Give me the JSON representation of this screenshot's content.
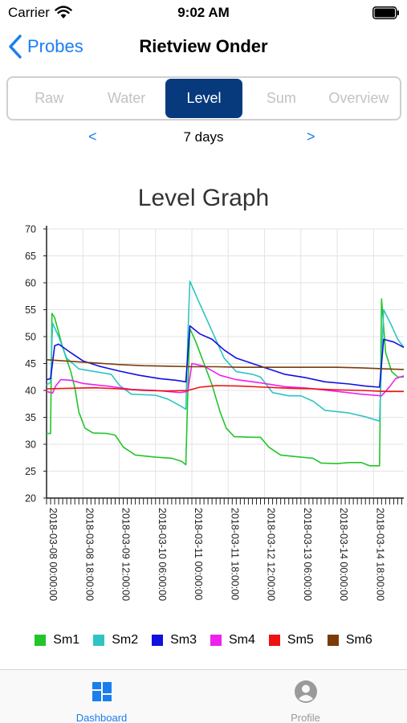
{
  "status": {
    "carrier": "Carrier",
    "time": "9:02 AM"
  },
  "nav": {
    "back_label": "Probes",
    "title": "Rietview Onder"
  },
  "tabs": [
    {
      "label": "Raw",
      "active": false
    },
    {
      "label": "Water",
      "active": false
    },
    {
      "label": "Level",
      "active": true
    },
    {
      "label": "Sum",
      "active": false
    },
    {
      "label": "Overview",
      "active": false
    }
  ],
  "period": {
    "prev": "<",
    "label": "7 days",
    "next": ">"
  },
  "chart_title": "Level Graph",
  "chart_data": {
    "type": "line",
    "title": "Level Graph",
    "xlabel": "",
    "ylabel": "",
    "xlim": [
      "2018-03-08 00:00:00",
      "2018-03-15 09:00:00"
    ],
    "ylim": [
      20,
      70
    ],
    "yticks": [
      "20",
      "25",
      "30",
      "35",
      "40",
      "45",
      "50",
      "55",
      "60",
      "65",
      "70"
    ],
    "xticks": [
      {
        "t": "2018-03-08 00:00:00",
        "label": "2018-03-08 00:00:00"
      },
      {
        "t": "2018-03-08 18:00:00",
        "label": "2018-03-08 18:00:00"
      },
      {
        "t": "2018-03-09 12:00:00",
        "label": "2018-03-09 12:00:00"
      },
      {
        "t": "2018-03-10 06:00:00",
        "label": "2018-03-10 06:00:00"
      },
      {
        "t": "2018-03-11 00:00:00",
        "label": "2018-03-11 00:00:00"
      },
      {
        "t": "2018-03-11 18:00:00",
        "label": "2018-03-11 18:00:00"
      },
      {
        "t": "2018-03-12 12:00:00",
        "label": "2018-03-12 12:00:00"
      },
      {
        "t": "2018-03-13 06:00:00",
        "label": "2018-03-13 06:00:00"
      },
      {
        "t": "2018-03-14 00:00:00",
        "label": "2018-03-14 00:00:00"
      },
      {
        "t": "2018-03-14 18:00:00",
        "label": "2018-03-14 18:00:00"
      }
    ],
    "grid": true,
    "legend": "bottom",
    "series": [
      {
        "name": "Sm1",
        "color": "#22c52a",
        "points": [
          [
            "2018-03-08 00:00:00",
            32
          ],
          [
            "2018-03-08 02:00:00",
            32
          ],
          [
            "2018-03-08 02:40:00",
            54.3
          ],
          [
            "2018-03-08 04:00:00",
            53.5
          ],
          [
            "2018-03-08 08:00:00",
            48
          ],
          [
            "2018-03-08 12:00:00",
            43.5
          ],
          [
            "2018-03-08 14:00:00",
            40.5
          ],
          [
            "2018-03-08 16:00:00",
            36
          ],
          [
            "2018-03-08 19:00:00",
            33
          ],
          [
            "2018-03-08 23:00:00",
            32.1
          ],
          [
            "2018-03-09 06:00:00",
            32
          ],
          [
            "2018-03-09 10:00:00",
            31.7
          ],
          [
            "2018-03-09 14:00:00",
            29.5
          ],
          [
            "2018-03-09 20:00:00",
            28
          ],
          [
            "2018-03-10 06:00:00",
            27.6
          ],
          [
            "2018-03-10 14:00:00",
            27.4
          ],
          [
            "2018-03-10 19:00:00",
            26.8
          ],
          [
            "2018-03-10 21:00:00",
            26.2
          ],
          [
            "2018-03-10 22:00:00",
            40
          ],
          [
            "2018-03-10 23:00:00",
            51.5
          ],
          [
            "2018-03-11 02:00:00",
            49
          ],
          [
            "2018-03-11 06:00:00",
            45
          ],
          [
            "2018-03-11 10:00:00",
            41
          ],
          [
            "2018-03-11 14:00:00",
            36
          ],
          [
            "2018-03-11 17:00:00",
            33
          ],
          [
            "2018-03-11 21:00:00",
            31.4
          ],
          [
            "2018-03-12 06:00:00",
            31.3
          ],
          [
            "2018-03-12 10:00:00",
            31.3
          ],
          [
            "2018-03-12 14:00:00",
            29.5
          ],
          [
            "2018-03-12 20:00:00",
            28
          ],
          [
            "2018-03-13 06:00:00",
            27.6
          ],
          [
            "2018-03-13 12:00:00",
            27.4
          ],
          [
            "2018-03-13 16:00:00",
            26.5
          ],
          [
            "2018-03-14 00:00:00",
            26.4
          ],
          [
            "2018-03-14 06:00:00",
            26.6
          ],
          [
            "2018-03-14 12:00:00",
            26.6
          ],
          [
            "2018-03-14 16:00:00",
            26
          ],
          [
            "2018-03-14 21:00:00",
            26
          ],
          [
            "2018-03-14 22:00:00",
            57
          ],
          [
            "2018-03-15 00:00:00",
            47
          ],
          [
            "2018-03-15 03:00:00",
            43.5
          ],
          [
            "2018-03-15 06:00:00",
            42.5
          ],
          [
            "2018-03-15 09:00:00",
            42.5
          ]
        ]
      },
      {
        "name": "Sm2",
        "color": "#2ec4c4",
        "points": [
          [
            "2018-03-08 00:00:00",
            41
          ],
          [
            "2018-03-08 02:00:00",
            41.5
          ],
          [
            "2018-03-08 03:00:00",
            52.5
          ],
          [
            "2018-03-08 06:00:00",
            50
          ],
          [
            "2018-03-08 10:00:00",
            46
          ],
          [
            "2018-03-08 16:00:00",
            44
          ],
          [
            "2018-03-09 00:00:00",
            43.5
          ],
          [
            "2018-03-09 08:00:00",
            43
          ],
          [
            "2018-03-09 12:00:00",
            41
          ],
          [
            "2018-03-09 18:00:00",
            39.3
          ],
          [
            "2018-03-10 06:00:00",
            39.1
          ],
          [
            "2018-03-10 12:00:00",
            38.4
          ],
          [
            "2018-03-10 18:00:00",
            37.2
          ],
          [
            "2018-03-10 21:00:00",
            36.5
          ],
          [
            "2018-03-10 22:00:00",
            50
          ],
          [
            "2018-03-10 23:00:00",
            60.3
          ],
          [
            "2018-03-11 04:00:00",
            56
          ],
          [
            "2018-03-11 10:00:00",
            51
          ],
          [
            "2018-03-11 16:00:00",
            46
          ],
          [
            "2018-03-11 22:00:00",
            43.5
          ],
          [
            "2018-03-12 06:00:00",
            43
          ],
          [
            "2018-03-12 10:00:00",
            42.5
          ],
          [
            "2018-03-12 16:00:00",
            39.6
          ],
          [
            "2018-03-13 00:00:00",
            39
          ],
          [
            "2018-03-13 06:00:00",
            39
          ],
          [
            "2018-03-13 12:00:00",
            38
          ],
          [
            "2018-03-13 18:00:00",
            36.3
          ],
          [
            "2018-03-14 06:00:00",
            35.8
          ],
          [
            "2018-03-14 14:00:00",
            35.1
          ],
          [
            "2018-03-14 21:00:00",
            34.3
          ],
          [
            "2018-03-14 22:00:00",
            45
          ],
          [
            "2018-03-14 23:00:00",
            55
          ],
          [
            "2018-03-15 03:00:00",
            52
          ],
          [
            "2018-03-15 06:00:00",
            49.5
          ],
          [
            "2018-03-15 09:00:00",
            48
          ]
        ]
      },
      {
        "name": "Sm3",
        "color": "#1010e0",
        "points": [
          [
            "2018-03-08 00:00:00",
            42
          ],
          [
            "2018-03-08 02:00:00",
            42.2
          ],
          [
            "2018-03-08 04:00:00",
            48.3
          ],
          [
            "2018-03-08 06:00:00",
            48.6
          ],
          [
            "2018-03-08 12:00:00",
            47
          ],
          [
            "2018-03-08 18:00:00",
            45.5
          ],
          [
            "2018-03-09 02:00:00",
            44.5
          ],
          [
            "2018-03-09 12:00:00",
            43.6
          ],
          [
            "2018-03-09 22:00:00",
            42.8
          ],
          [
            "2018-03-10 08:00:00",
            42.2
          ],
          [
            "2018-03-10 16:00:00",
            41.9
          ],
          [
            "2018-03-10 21:00:00",
            41.6
          ],
          [
            "2018-03-10 23:00:00",
            52
          ],
          [
            "2018-03-11 04:00:00",
            50.5
          ],
          [
            "2018-03-11 10:00:00",
            49.5
          ],
          [
            "2018-03-11 16:00:00",
            47.5
          ],
          [
            "2018-03-11 22:00:00",
            46
          ],
          [
            "2018-03-12 06:00:00",
            45
          ],
          [
            "2018-03-12 14:00:00",
            44
          ],
          [
            "2018-03-12 22:00:00",
            43
          ],
          [
            "2018-03-13 08:00:00",
            42.4
          ],
          [
            "2018-03-13 18:00:00",
            41.6
          ],
          [
            "2018-03-14 06:00:00",
            41.2
          ],
          [
            "2018-03-14 14:00:00",
            40.8
          ],
          [
            "2018-03-14 21:00:00",
            40.6
          ],
          [
            "2018-03-14 23:00:00",
            49.5
          ],
          [
            "2018-03-15 04:00:00",
            49
          ],
          [
            "2018-03-15 09:00:00",
            48
          ]
        ]
      },
      {
        "name": "Sm4",
        "color": "#ee22ee",
        "points": [
          [
            "2018-03-08 00:00:00",
            39.8
          ],
          [
            "2018-03-08 03:00:00",
            39.5
          ],
          [
            "2018-03-08 04:30:00",
            40.8
          ],
          [
            "2018-03-08 07:00:00",
            42
          ],
          [
            "2018-03-08 12:00:00",
            41.9
          ],
          [
            "2018-03-08 18:00:00",
            41.3
          ],
          [
            "2018-03-09 06:00:00",
            40.8
          ],
          [
            "2018-03-09 18:00:00",
            40.2
          ],
          [
            "2018-03-10 06:00:00",
            40
          ],
          [
            "2018-03-10 18:00:00",
            39.6
          ],
          [
            "2018-03-10 22:00:00",
            39.8
          ],
          [
            "2018-03-11 00:00:00",
            45
          ],
          [
            "2018-03-11 06:00:00",
            44.5
          ],
          [
            "2018-03-11 14:00:00",
            42.8
          ],
          [
            "2018-03-11 22:00:00",
            42
          ],
          [
            "2018-03-12 10:00:00",
            41.4
          ],
          [
            "2018-03-12 22:00:00",
            40.7
          ],
          [
            "2018-03-13 10:00:00",
            40.4
          ],
          [
            "2018-03-13 22:00:00",
            39.9
          ],
          [
            "2018-03-14 12:00:00",
            39.3
          ],
          [
            "2018-03-14 22:00:00",
            39
          ],
          [
            "2018-03-15 02:00:00",
            40.7
          ],
          [
            "2018-03-15 05:00:00",
            42.2
          ],
          [
            "2018-03-15 09:00:00",
            42.7
          ]
        ]
      },
      {
        "name": "Sm5",
        "color": "#ee1111",
        "points": [
          [
            "2018-03-08 00:00:00",
            40.3
          ],
          [
            "2018-03-08 12:00:00",
            40.4
          ],
          [
            "2018-03-09 00:00:00",
            40.5
          ],
          [
            "2018-03-09 12:00:00",
            40.3
          ],
          [
            "2018-03-10 00:00:00",
            40
          ],
          [
            "2018-03-10 12:00:00",
            39.9
          ],
          [
            "2018-03-10 22:00:00",
            40
          ],
          [
            "2018-03-11 04:00:00",
            40.6
          ],
          [
            "2018-03-11 12:00:00",
            40.9
          ],
          [
            "2018-03-12 00:00:00",
            40.8
          ],
          [
            "2018-03-12 12:00:00",
            40.6
          ],
          [
            "2018-03-13 00:00:00",
            40.4
          ],
          [
            "2018-03-13 12:00:00",
            40.3
          ],
          [
            "2018-03-14 00:00:00",
            40.1
          ],
          [
            "2018-03-14 12:00:00",
            40
          ],
          [
            "2018-03-15 00:00:00",
            39.8
          ],
          [
            "2018-03-15 09:00:00",
            39.8
          ]
        ]
      },
      {
        "name": "Sm6",
        "color": "#7a3b0a",
        "points": [
          [
            "2018-03-08 00:00:00",
            45.7
          ],
          [
            "2018-03-08 12:00:00",
            45.4
          ],
          [
            "2018-03-09 00:00:00",
            45.1
          ],
          [
            "2018-03-09 12:00:00",
            44.8
          ],
          [
            "2018-03-10 00:00:00",
            44.6
          ],
          [
            "2018-03-10 12:00:00",
            44.5
          ],
          [
            "2018-03-11 00:00:00",
            44.4
          ],
          [
            "2018-03-11 12:00:00",
            44.4
          ],
          [
            "2018-03-12 00:00:00",
            44.3
          ],
          [
            "2018-03-12 12:00:00",
            44.3
          ],
          [
            "2018-03-13 00:00:00",
            44.3
          ],
          [
            "2018-03-13 12:00:00",
            44.3
          ],
          [
            "2018-03-14 00:00:00",
            44.3
          ],
          [
            "2018-03-14 12:00:00",
            44.2
          ],
          [
            "2018-03-15 00:00:00",
            44
          ],
          [
            "2018-03-15 09:00:00",
            43.9
          ]
        ]
      }
    ]
  },
  "legend": [
    {
      "label": "Sm1",
      "color": "#22c52a"
    },
    {
      "label": "Sm2",
      "color": "#2ec4c4"
    },
    {
      "label": "Sm3",
      "color": "#1010e0"
    },
    {
      "label": "Sm4",
      "color": "#ee22ee"
    },
    {
      "label": "Sm5",
      "color": "#ee1111"
    },
    {
      "label": "Sm6",
      "color": "#7a3b0a"
    }
  ],
  "tabbar": {
    "items": [
      {
        "label": "Dashboard",
        "icon": "dashboard-icon",
        "active": true,
        "color": "#1a7ef0"
      },
      {
        "label": "Profile",
        "icon": "profile-icon",
        "active": false,
        "color": "#9a9a9a"
      }
    ]
  }
}
